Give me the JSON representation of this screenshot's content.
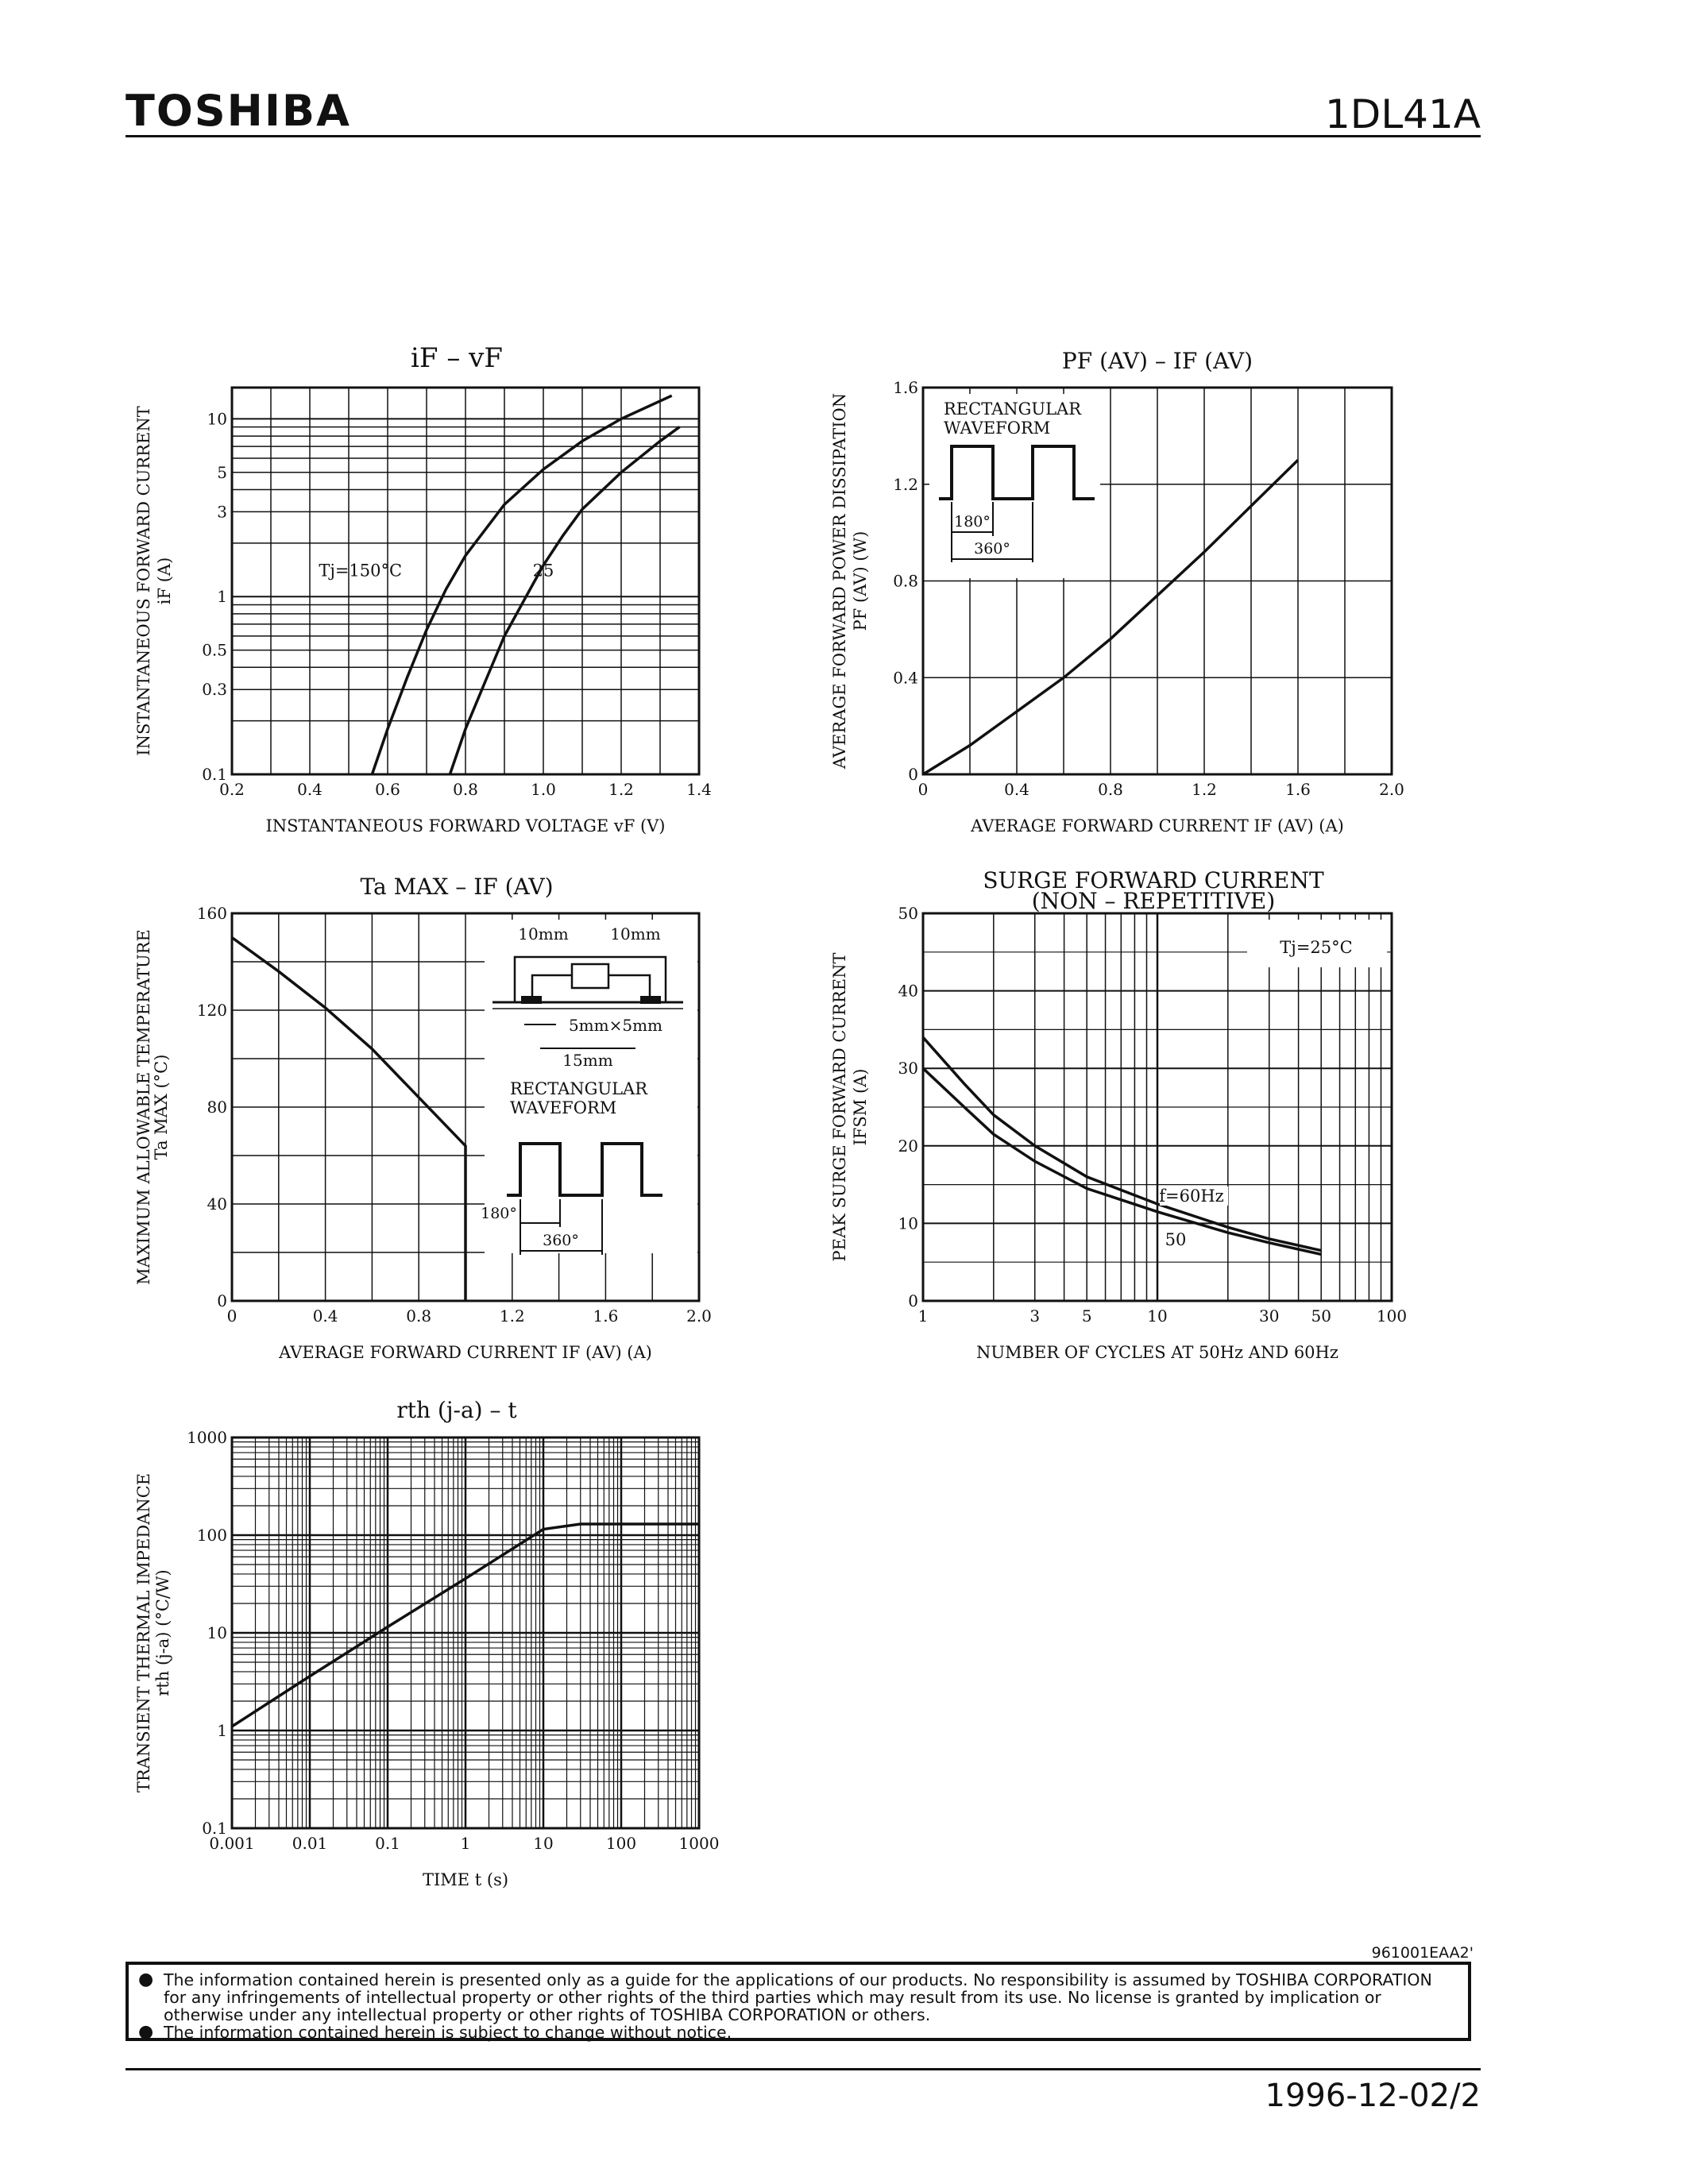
{
  "header": {
    "brand": "TOSHIBA",
    "part_number": "1DL41A"
  },
  "footer": {
    "ref_code": "961001EAA2'",
    "notice": [
      "The information contained herein is presented only as a guide for the applications of our products. No responsibility is assumed by TOSHIBA CORPORATION for any infringements of intellectual property or other rights of the third parties which may result from its use. No license is granted by implication or otherwise under any intellectual property or other rights of TOSHIBA CORPORATION or others.",
      "The information contained herein is subject to change without notice."
    ],
    "date": "1996-12-02",
    "page": "2/2"
  },
  "chart_data": [
    {
      "id": "if_vf",
      "type": "line",
      "title": "iF – vF",
      "xlabel": "INSTANTANEOUS FORWARD VOLTAGE   vF   (V)",
      "ylabel": "INSTANTANEOUS FORWARD CURRENT",
      "ylabel2": "iF   (A)",
      "xlim": [
        0.2,
        1.4
      ],
      "ylim": [
        0.1,
        15
      ],
      "yscale": "log",
      "xticks": [
        "0.2",
        "0.4",
        "0.6",
        "0.8",
        "1.0",
        "1.2",
        "1.4"
      ],
      "yticks": [
        "0.1",
        "0.3",
        "0.5",
        "1",
        "3",
        "5",
        "10"
      ],
      "annotations": [
        "Tj=150°C",
        "25"
      ],
      "series": [
        {
          "name": "Tj=150°C",
          "x": [
            0.56,
            0.6,
            0.65,
            0.7,
            0.75,
            0.8,
            0.9,
            1.0,
            1.1,
            1.2,
            1.33
          ],
          "y": [
            0.1,
            0.18,
            0.35,
            0.65,
            1.1,
            1.7,
            3.3,
            5.2,
            7.5,
            10,
            13.5
          ]
        },
        {
          "name": "25",
          "x": [
            0.76,
            0.8,
            0.85,
            0.9,
            0.95,
            1.0,
            1.05,
            1.1,
            1.2,
            1.3,
            1.35
          ],
          "y": [
            0.1,
            0.18,
            0.33,
            0.6,
            0.95,
            1.5,
            2.2,
            3.1,
            5,
            7.5,
            9
          ]
        }
      ]
    },
    {
      "id": "pf_if",
      "type": "line",
      "title": "PF (AV) – IF (AV)",
      "xlabel": "AVERAGE FORWARD CURRENT   IF (AV)   (A)",
      "ylabel": "AVERAGE FORWARD POWER DISSIPATION",
      "ylabel2": "PF (AV)   (W)",
      "xlim": [
        0,
        2.0
      ],
      "ylim": [
        0,
        1.6
      ],
      "xticks": [
        "0",
        "0.4",
        "0.8",
        "1.2",
        "1.6",
        "2.0"
      ],
      "yticks": [
        "0",
        "0.4",
        "0.8",
        "1.2",
        "1.6"
      ],
      "inset": {
        "label1": "RECTANGULAR",
        "label2": "WAVEFORM",
        "angle1": "180°",
        "angle2": "360°"
      },
      "series": [
        {
          "name": "",
          "x": [
            0,
            0.2,
            0.4,
            0.6,
            0.8,
            1.0,
            1.2,
            1.4,
            1.6
          ],
          "y": [
            0,
            0.12,
            0.26,
            0.4,
            0.56,
            0.74,
            0.92,
            1.11,
            1.3
          ]
        }
      ]
    },
    {
      "id": "tamax_if",
      "type": "line",
      "title": "Ta MAX – IF (AV)",
      "xlabel": "AVERAGE FORWARD CURRENT   IF (AV)   (A)",
      "ylabel": "MAXIMUM ALLOWABLE TEMPERATURE",
      "ylabel2": "Ta  MAX   (°C)",
      "xlim": [
        0,
        2.0
      ],
      "ylim": [
        0,
        160
      ],
      "xticks": [
        "0",
        "0.4",
        "0.8",
        "1.2",
        "1.6",
        "2.0"
      ],
      "yticks": [
        "0",
        "40",
        "80",
        "120",
        "160"
      ],
      "inset": {
        "dim1": "10mm",
        "dim2": "10mm",
        "dim3": "5mm×5mm",
        "dim4": "15mm",
        "label1": "RECTANGULAR",
        "label2": "WAVEFORM",
        "angle1": "180°",
        "angle2": "360°"
      },
      "series": [
        {
          "name": "",
          "x": [
            0,
            0.2,
            0.4,
            0.6,
            0.8,
            1.0,
            1.0
          ],
          "y": [
            150,
            136,
            121,
            104,
            84,
            64,
            0
          ]
        }
      ]
    },
    {
      "id": "ifsm",
      "type": "line",
      "title": "SURGE FORWARD CURRENT",
      "subtitle": "(NON – REPETITIVE)",
      "xlabel": "NUMBER OF CYCLES AT 50Hz AND 60Hz",
      "ylabel": "PEAK SURGE FORWARD CURRENT",
      "ylabel2": "IFSM   (A)",
      "xlim": [
        1,
        100
      ],
      "xscale": "log",
      "ylim": [
        0,
        50
      ],
      "xticks": [
        "1",
        "3",
        "5",
        "10",
        "30",
        "50",
        "100"
      ],
      "yticks": [
        "0",
        "10",
        "20",
        "30",
        "40",
        "50"
      ],
      "annotations": [
        "Tj=25°C",
        "f=60Hz",
        "50"
      ],
      "series": [
        {
          "name": "f=60Hz",
          "x": [
            1,
            1.5,
            2,
            3,
            5,
            10,
            20,
            30,
            50
          ],
          "y": [
            34,
            28,
            24,
            20,
            16,
            12.5,
            9.5,
            8,
            6.5
          ]
        },
        {
          "name": "50",
          "x": [
            1,
            1.5,
            2,
            3,
            5,
            10,
            20,
            30,
            50
          ],
          "y": [
            30,
            25,
            21.5,
            18,
            14.5,
            11.5,
            8.8,
            7.5,
            6
          ]
        }
      ]
    },
    {
      "id": "rth_t",
      "type": "line",
      "title": "rth (j-a) – t",
      "xlabel": "TIME   t   (s)",
      "ylabel": "TRANSIENT THERMAL IMPEDANCE",
      "ylabel2": "rth (j-a)   (°C/W)",
      "xlim": [
        0.001,
        1000
      ],
      "xscale": "log",
      "ylim": [
        0.1,
        1000
      ],
      "yscale": "log",
      "xticks": [
        "0.001",
        "0.01",
        "0.1",
        "1",
        "10",
        "100",
        "1000"
      ],
      "yticks": [
        "0.1",
        "1",
        "10",
        "100",
        "1000"
      ],
      "series": [
        {
          "name": "",
          "x": [
            0.001,
            0.01,
            0.1,
            1,
            10,
            30,
            100,
            1000
          ],
          "y": [
            1.1,
            3.6,
            11.5,
            36,
            115,
            130,
            130,
            130
          ]
        }
      ]
    }
  ]
}
